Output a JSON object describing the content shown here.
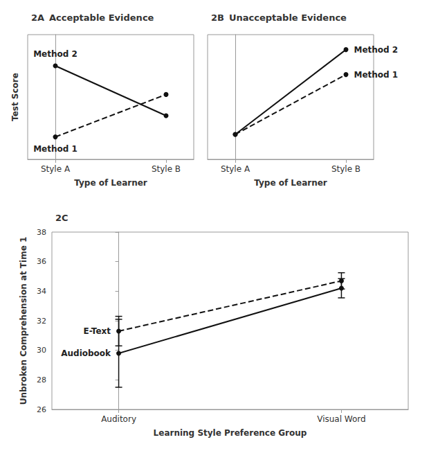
{
  "chart_data": [
    {
      "type": "line",
      "annotations": [
        "2A"
      ],
      "title": "Acceptable Evidence",
      "xlabel": "Type of Learner",
      "ylabel": "Test Score",
      "x": [
        0,
        1
      ],
      "xlim": [
        -0.25,
        1.25
      ],
      "xticks": [
        {
          "value": 0,
          "label": "Style A"
        },
        {
          "value": 1,
          "label": "Style B"
        }
      ],
      "ylim": [
        0,
        1
      ],
      "tick_labels": "x",
      "grid": false,
      "series": [
        {
          "name": "Method 1",
          "color": "#111111",
          "line_style": "dashed",
          "marker": "circle",
          "values": [
            0.18,
            0.52
          ]
        },
        {
          "name": "Method 2",
          "color": "#111111",
          "line_style": "solid",
          "marker": "circle",
          "values": [
            0.75,
            0.35
          ]
        }
      ]
    },
    {
      "type": "line",
      "annotations": [
        "2B"
      ],
      "title": "Unacceptable Evidence",
      "xlabel": "Type of Learner",
      "x": [
        0,
        1
      ],
      "xlim": [
        -0.25,
        1.25
      ],
      "xticks": [
        {
          "value": 0,
          "label": "Style A"
        },
        {
          "value": 1,
          "label": "Style B"
        }
      ],
      "ylim": [
        0,
        1
      ],
      "tick_labels": "x",
      "grid": false,
      "series": [
        {
          "name": "Method 1",
          "color": "#111111",
          "line_style": "dashed",
          "marker": "circle",
          "values": [
            0.2,
            0.68
          ]
        },
        {
          "name": "Method 2",
          "color": "#111111",
          "line_style": "solid",
          "marker": "circle",
          "values": [
            0.2,
            0.88
          ]
        }
      ]
    },
    {
      "type": "line",
      "annotations": [
        "2C"
      ],
      "xlabel": "Learning Style Preference Group",
      "ylabel": "Unbroken Comprehension at Time 1",
      "x": [
        0,
        1
      ],
      "xlim": [
        -0.3,
        1.3
      ],
      "xticks": [
        {
          "value": 0,
          "label": "Auditory"
        },
        {
          "value": 1,
          "label": "Visual Word"
        }
      ],
      "ylim": [
        26,
        38
      ],
      "yticks": [
        26,
        28,
        30,
        32,
        34,
        36,
        38
      ],
      "grid": false,
      "series": [
        {
          "name": "E-Text",
          "color": "#111111",
          "line_style": "dashed",
          "marker": "circle",
          "values": [
            31.3,
            34.7
          ],
          "yerr": [
            1.0,
            0.55
          ]
        },
        {
          "name": "Audiobook",
          "color": "#111111",
          "line_style": "solid",
          "marker": "circle",
          "values": [
            29.8,
            34.2
          ],
          "yerr": [
            2.3,
            0.65
          ]
        }
      ]
    }
  ]
}
